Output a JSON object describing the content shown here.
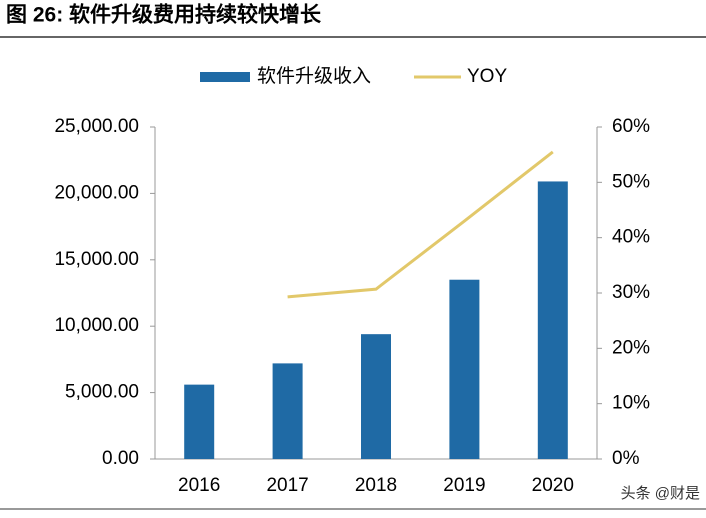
{
  "chart_data": {
    "type": "bar-line",
    "title": "图 26: 软件升级费用持续较快增长",
    "categories": [
      "2016",
      "2017",
      "2018",
      "2019",
      "2020"
    ],
    "series": [
      {
        "name": "软件升级收入",
        "color": "#1f6aa5",
        "type": "bar",
        "values": [
          5600,
          7200,
          9400,
          13500,
          20900
        ]
      },
      {
        "name": "YOY",
        "color": "#e2c86a",
        "type": "line",
        "axis": "y2",
        "values": [
          null,
          29.3,
          30.7,
          43,
          55.5
        ]
      }
    ],
    "ylim": [
      0,
      25000
    ],
    "yticks": [
      {
        "value": 0,
        "label": "0.00"
      },
      {
        "value": 5000,
        "label": "5,000.00"
      },
      {
        "value": 10000,
        "label": "10,000.00"
      },
      {
        "value": 15000,
        "label": "15,000.00"
      },
      {
        "value": 20000,
        "label": "20,000.00"
      },
      {
        "value": 25000,
        "label": "25,000.00"
      }
    ],
    "y2lim": [
      0,
      60
    ],
    "y2ticks": [
      {
        "value": 0,
        "label": "0%"
      },
      {
        "value": 10,
        "label": "10%"
      },
      {
        "value": 20,
        "label": "20%"
      },
      {
        "value": 30,
        "label": "30%"
      },
      {
        "value": 40,
        "label": "40%"
      },
      {
        "value": 50,
        "label": "50%"
      },
      {
        "value": 60,
        "label": "60%"
      }
    ],
    "legend": "top"
  },
  "watermark": "头条 @财是"
}
